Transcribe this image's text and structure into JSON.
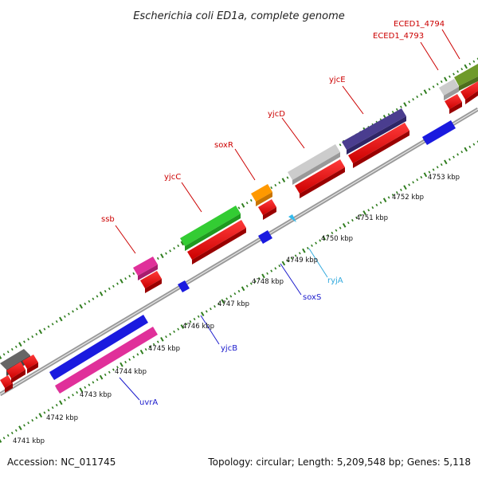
{
  "title": "Escherichia coli ED1a, complete genome",
  "accession": "Accession: NC_011745",
  "topology": "Topology: circular; Length: 5,209,548 bp; Genes: 5,118",
  "colors": {
    "backbone": "#888888",
    "forward_tick": "#2f7d1e",
    "reverse_tick": "#2f7d1e",
    "label_red": "#cc0000",
    "label_blue": "#1a1acc",
    "label_cyan": "#33aadd"
  },
  "kbp_ticks": [
    "4741 kbp",
    "4742 kbp",
    "4743 kbp",
    "4744 kbp",
    "4745 kbp",
    "4746 kbp",
    "4747 kbp",
    "4748 kbp",
    "4749 kbp",
    "4750 kbp",
    "4751 kbp",
    "4752 kbp",
    "4753 kbp"
  ],
  "gene_labels_top": [
    {
      "name": "ssb",
      "color": "#cc0000"
    },
    {
      "name": "yjcC",
      "color": "#cc0000"
    },
    {
      "name": "soxR",
      "color": "#cc0000"
    },
    {
      "name": "yjcD",
      "color": "#cc0000"
    },
    {
      "name": "yjcE",
      "color": "#cc0000"
    },
    {
      "name": "ECED1_4793",
      "color": "#cc0000"
    },
    {
      "name": "ECED1_4794",
      "color": "#cc0000"
    }
  ],
  "gene_labels_bottom": [
    {
      "name": "uvrA",
      "color": "#1a1acc"
    },
    {
      "name": "yjcB",
      "color": "#1a1acc"
    },
    {
      "name": "soxS",
      "color": "#1a1acc"
    },
    {
      "name": "ryjA",
      "color": "#33aadd"
    }
  ],
  "features": [
    {
      "id": "gray-left",
      "color": "#666666"
    },
    {
      "id": "ssb-gene",
      "color": "#e0309a"
    },
    {
      "id": "yjcC-gene",
      "color": "#33cc33"
    },
    {
      "id": "soxR-gene",
      "color": "#ff9900"
    },
    {
      "id": "yjcD-gene",
      "color": "#cccccc"
    },
    {
      "id": "yjcE-gene",
      "color": "#4a3d8f"
    },
    {
      "id": "ECED1_4793-gene",
      "color": "#cccccc"
    },
    {
      "id": "ECED1_4794-gene",
      "color": "#6f9a2a"
    },
    {
      "id": "uvrA-gene",
      "color": "#1a1adf"
    },
    {
      "id": "uvrA-cds",
      "color": "#e0309a"
    },
    {
      "id": "yjcB-gene",
      "color": "#1a1adf"
    },
    {
      "id": "soxS-gene",
      "color": "#1a1adf"
    },
    {
      "id": "ryjA-gene",
      "color": "#33bbee"
    },
    {
      "id": "forward-right-gene",
      "color": "#1a1adf"
    },
    {
      "id": "cds",
      "color": "#ff0000"
    }
  ]
}
